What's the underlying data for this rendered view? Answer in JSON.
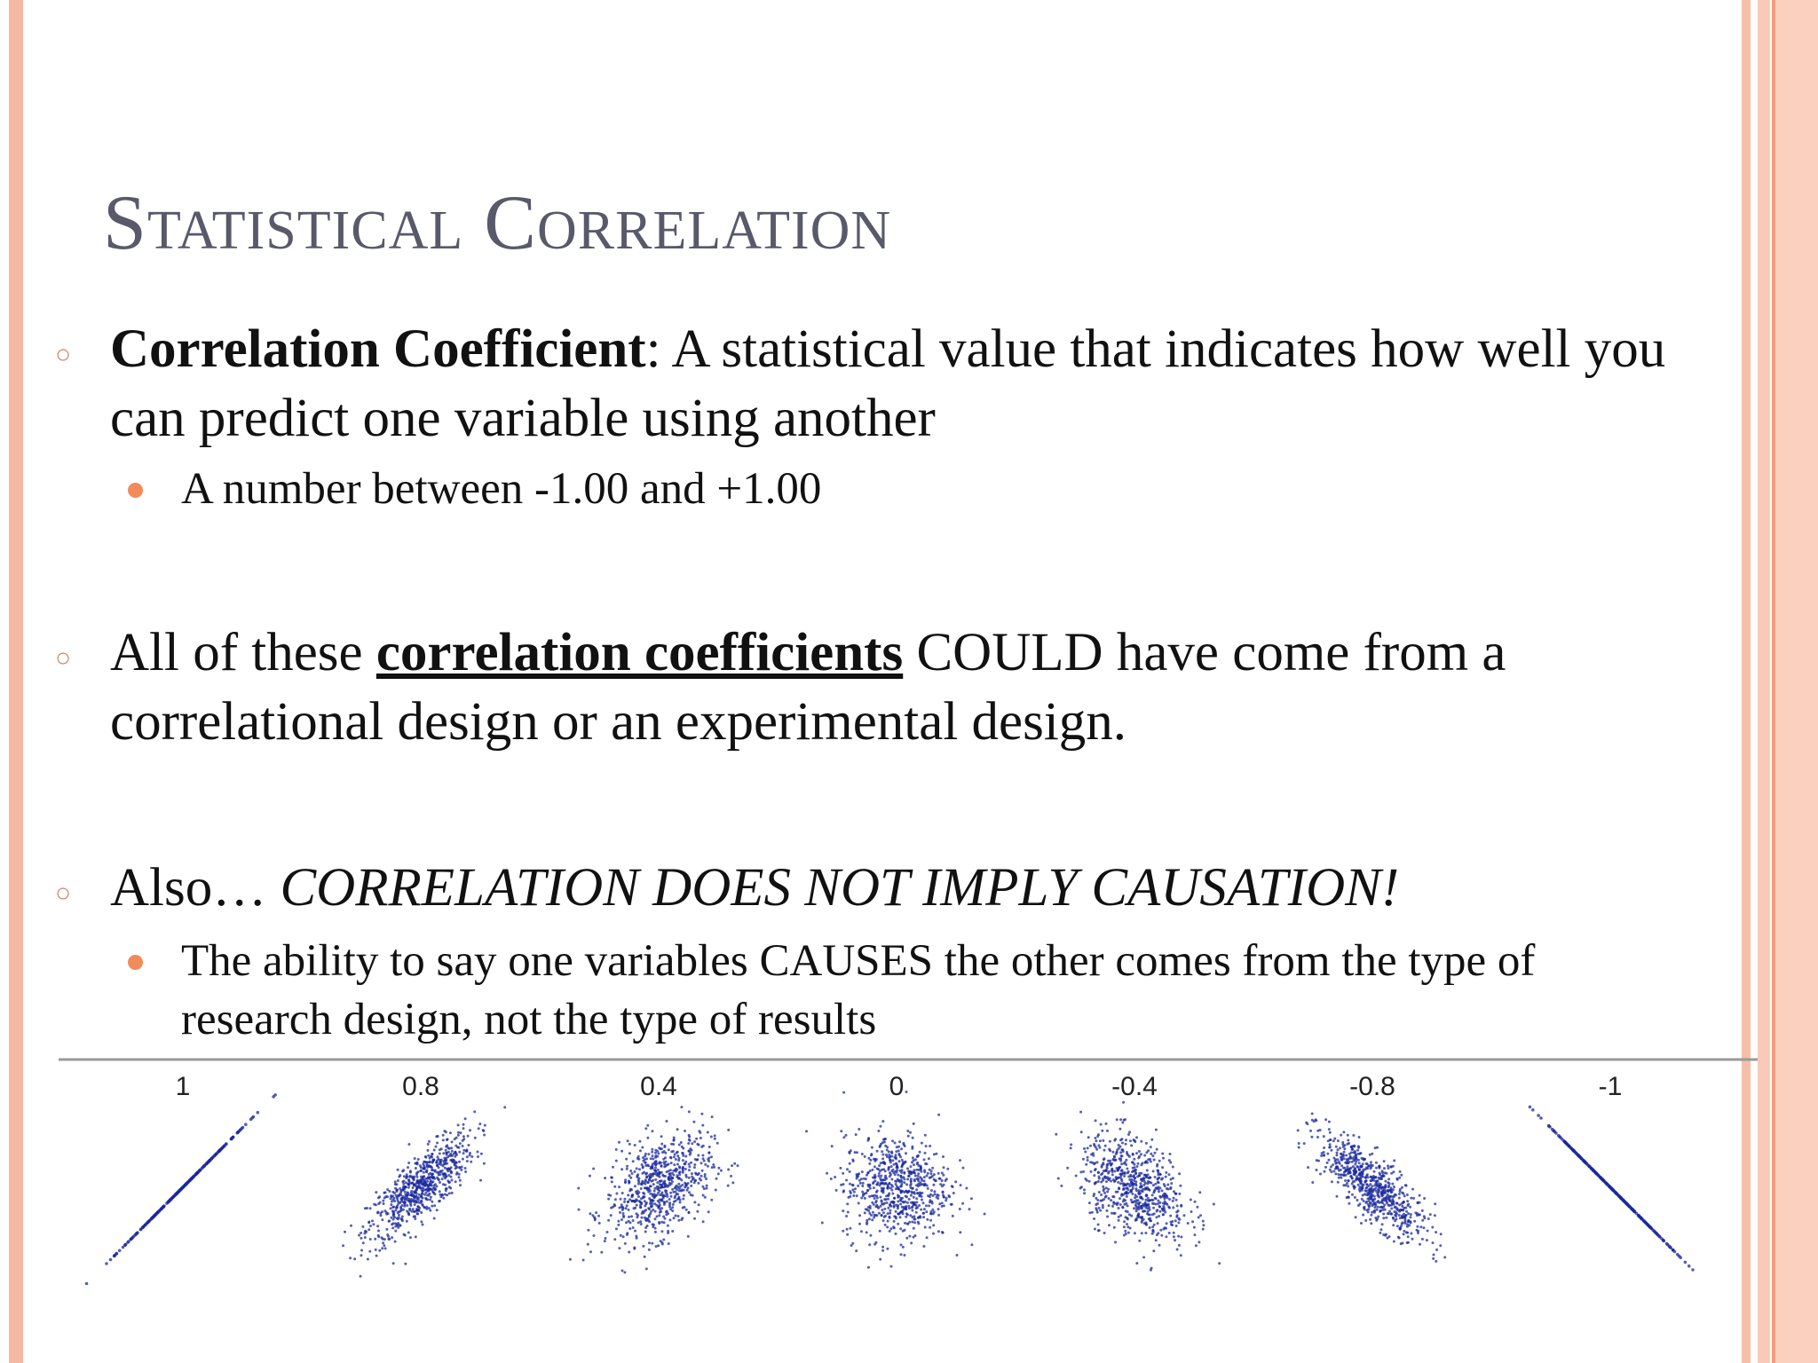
{
  "slide": {
    "title": "Statistical Correlation",
    "bullets": [
      {
        "term": "Correlation Coefficient",
        "rest": ": A statistical value that indicates how well you can predict one variable using another",
        "sub": [
          "A number between -1.00 and +1.00"
        ]
      },
      {
        "pre": "All of these ",
        "emph": "correlation coefficients",
        "post": " COULD have come from a correlational design or an experimental design."
      },
      {
        "pre": "Also… ",
        "italic": "CORRELATION DOES NOT IMPLY CAUSATION!",
        "sub": [
          "The ability to say one variables CAUSES the other comes from the type of research design, not the type of results"
        ]
      }
    ]
  },
  "chart_data": {
    "type": "scatter",
    "title": "",
    "panels": [
      {
        "label": "1",
        "r": 1
      },
      {
        "label": "0.8",
        "r": 0.8
      },
      {
        "label": "0.4",
        "r": 0.4
      },
      {
        "label": "0",
        "r": 0
      },
      {
        "label": "-0.4",
        "r": -0.4
      },
      {
        "label": "-0.8",
        "r": -0.8
      },
      {
        "label": "-1",
        "r": -1
      }
    ],
    "point_color": "#1b2a9e",
    "rule_color": "#9a9a9a"
  }
}
